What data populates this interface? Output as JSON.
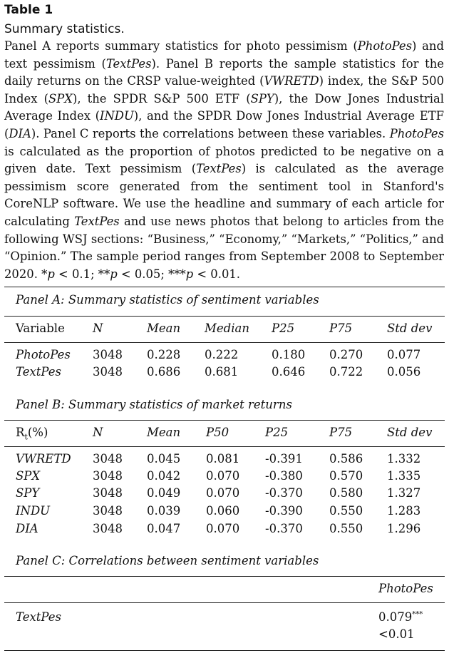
{
  "table": {
    "label": "Table 1",
    "title": "Summary statistics.",
    "caption": [
      {
        "t": "Panel A reports summary statistics for photo pessimism ("
      },
      {
        "t": "PhotoPes",
        "i": true
      },
      {
        "t": ") and text pessimism ("
      },
      {
        "t": "TextPes",
        "i": true
      },
      {
        "t": "). Panel B reports the sample statistics for the daily returns on the CRSP value-weighted ("
      },
      {
        "t": "VWRETD",
        "i": true
      },
      {
        "t": ") index, the S&P 500 Index ("
      },
      {
        "t": "SPX",
        "i": true
      },
      {
        "t": "), the SPDR S&P 500 ETF ("
      },
      {
        "t": "SPY",
        "i": true
      },
      {
        "t": "), the Dow Jones Industrial Average Index ("
      },
      {
        "t": "INDU",
        "i": true
      },
      {
        "t": "), and the SPDR Dow Jones Industrial Average ETF ("
      },
      {
        "t": "DIA",
        "i": true
      },
      {
        "t": "). Panel C reports the correlations between these variables. "
      },
      {
        "t": "PhotoPes",
        "i": true
      },
      {
        "t": " is calculated as the proportion of photos predicted to be negative on a given date. Text pessimism ("
      },
      {
        "t": "TextPes",
        "i": true
      },
      {
        "t": ") is calculated as the average pessimism score generated from the sentiment tool in Stanford's CoreNLP software. We use the headline and summary of each article for calculating "
      },
      {
        "t": "TextPes",
        "i": true
      },
      {
        "t": " and use news photos that belong to articles from the following WSJ sections: “Business,” “Economy,” “Markets,” “Politics,” and “Opinion.” The sample period ranges from September 2008 to September 2020. *"
      },
      {
        "t": "p",
        "i": true
      },
      {
        "t": " < 0.1; **"
      },
      {
        "t": "p",
        "i": true
      },
      {
        "t": " < 0.05; ***"
      },
      {
        "t": "p",
        "i": true
      },
      {
        "t": " < 0.01."
      }
    ],
    "panel_a": {
      "title": "Panel A: Summary statistics of sentiment variables",
      "headers": [
        "Variable",
        "N",
        "Mean",
        "Median",
        "P25",
        "P75",
        "Std dev"
      ],
      "rows": [
        [
          "PhotoPes",
          "3048",
          "0.228",
          "0.222",
          "0.180",
          "0.270",
          "0.077"
        ],
        [
          "TextPes",
          "3048",
          "0.686",
          "0.681",
          "0.646",
          "0.722",
          "0.056"
        ]
      ]
    },
    "panel_b": {
      "title": "Panel B: Summary statistics of market returns",
      "header_first_main": "R",
      "header_first_sub": "t",
      "header_first_unit": "(%)",
      "headers": [
        "N",
        "Mean",
        "P50",
        "P25",
        "P75",
        "Std dev"
      ],
      "rows": [
        [
          "VWRETD",
          "3048",
          "0.045",
          "0.081",
          "-0.391",
          "0.586",
          "1.332"
        ],
        [
          "SPX",
          "3048",
          "0.042",
          "0.070",
          "-0.380",
          "0.570",
          "1.335"
        ],
        [
          "SPY",
          "3048",
          "0.049",
          "0.070",
          "-0.370",
          "0.580",
          "1.327"
        ],
        [
          "INDU",
          "3048",
          "0.039",
          "0.060",
          "-0.390",
          "0.550",
          "1.283"
        ],
        [
          "DIA",
          "3048",
          "0.047",
          "0.070",
          "-0.370",
          "0.550",
          "1.296"
        ]
      ]
    },
    "panel_c": {
      "title": "Panel C: Correlations between sentiment variables",
      "column": "PhotoPes",
      "row_label": "TextPes",
      "correlation": "0.079",
      "stars": "***",
      "pvalue": "<0.01"
    }
  }
}
